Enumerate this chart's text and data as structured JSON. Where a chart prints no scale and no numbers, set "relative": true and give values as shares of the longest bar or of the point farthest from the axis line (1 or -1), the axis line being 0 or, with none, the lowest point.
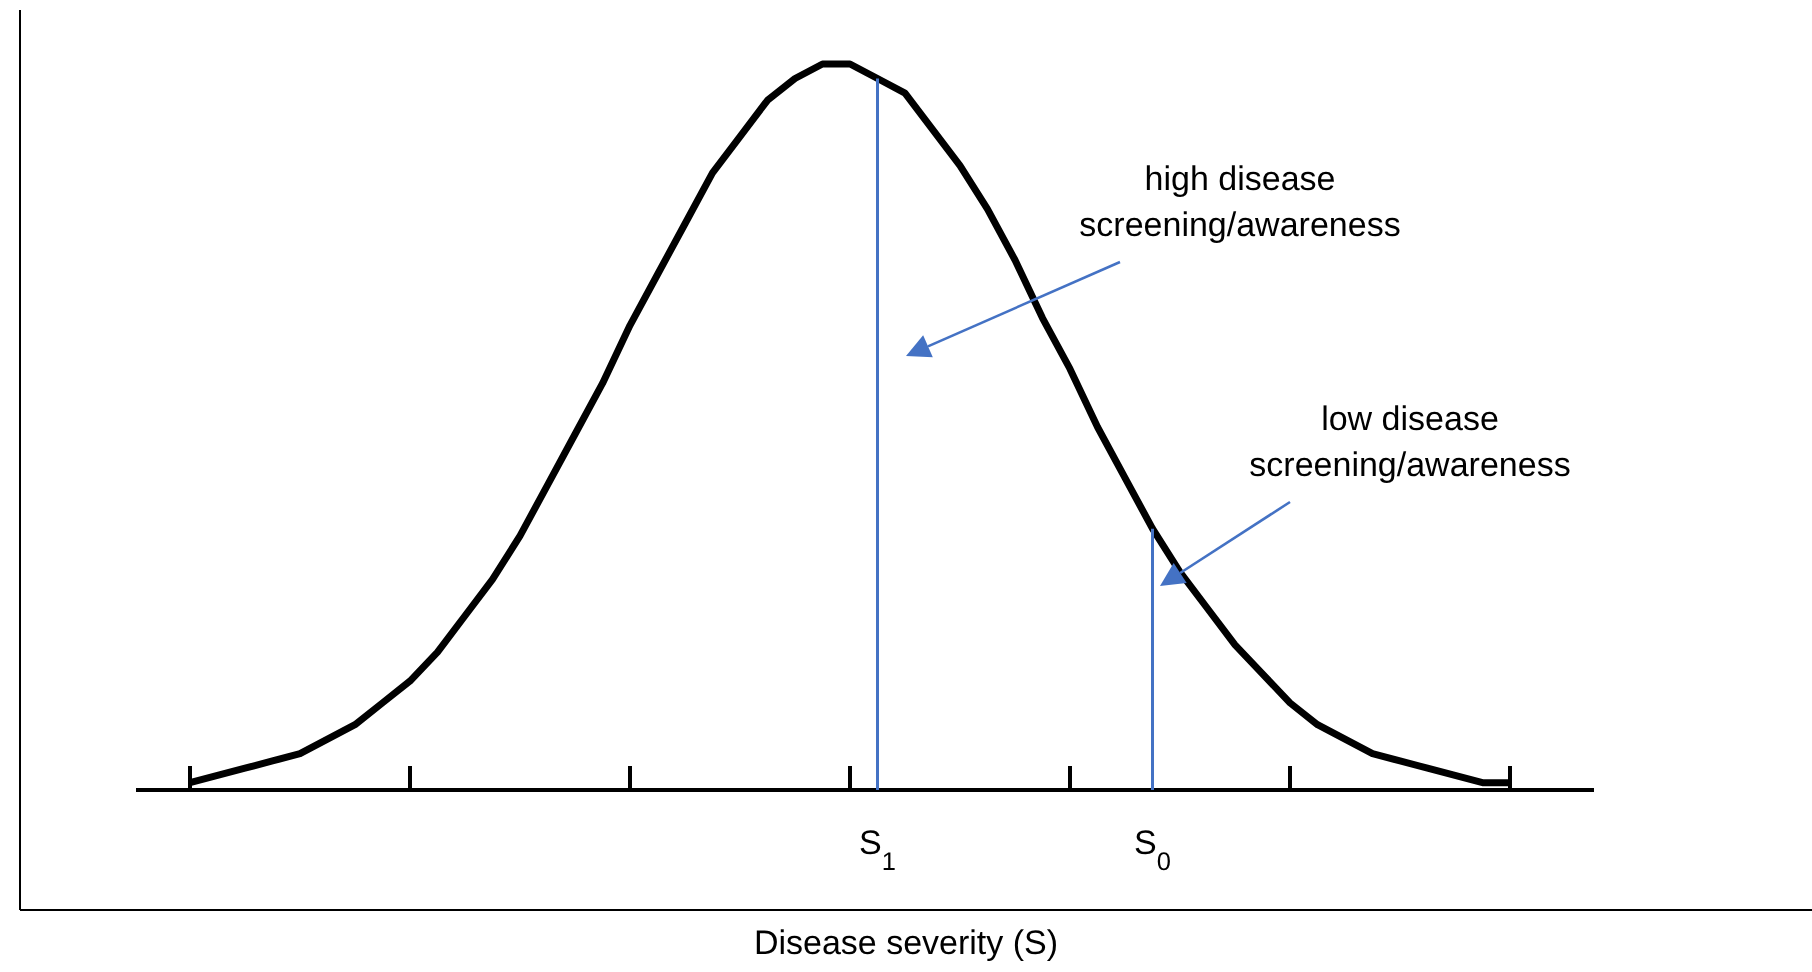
{
  "chart_data": {
    "type": "line",
    "relative": true,
    "xlabel": "Disease severity (S)",
    "categories": [
      null,
      null,
      null,
      null,
      null,
      null,
      null,
      null,
      null,
      null,
      null,
      null,
      null,
      null,
      null,
      null,
      null,
      null,
      null,
      null,
      null,
      null,
      null,
      null,
      null,
      "S$_{1}$",
      null,
      null,
      null,
      null,
      null,
      null,
      null,
      null,
      null,
      "S$_{0}$",
      null,
      null,
      null,
      null,
      null,
      null,
      null,
      null,
      null,
      null,
      null,
      null,
      null
    ],
    "series": [
      {
        "color": "#000000",
        "values": [
          0.01,
          0.02,
          0.03,
          0.04,
          0.05,
          0.07,
          0.09,
          0.12,
          0.15,
          0.19,
          0.24,
          0.29,
          0.35,
          0.42,
          0.49,
          0.56,
          0.64,
          0.71,
          0.78,
          0.85,
          0.9,
          0.95,
          0.98,
          1,
          1,
          0.98,
          0.96,
          0.91,
          0.86,
          0.8,
          0.73,
          0.65,
          0.58,
          0.5,
          0.43,
          0.36,
          0.3,
          0.25,
          0.2,
          0.16,
          0.12,
          0.09,
          0.07,
          0.05,
          0.04,
          0.03,
          0.02,
          0.01,
          0.01
        ]
      }
    ],
    "ref_lines": [
      {
        "axis": "x",
        "value": "S$_{1}$",
        "color": "#4472c4"
      },
      {
        "axis": "x",
        "value": "S$_{0}$",
        "color": "#4472c4"
      }
    ],
    "annotations": [
      "high disease screening/awareness",
      "low disease screening/awareness"
    ],
    "marker": "none",
    "line_style": "solid"
  }
}
